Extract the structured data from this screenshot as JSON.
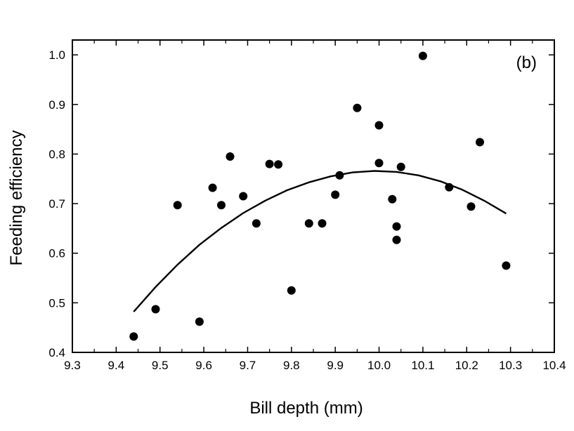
{
  "chart_data": {
    "type": "scatter",
    "title": "",
    "panel_label": "(b)",
    "xlabel": "Bill depth (mm)",
    "ylabel": "Feeding efficiency",
    "xlim": [
      9.3,
      10.4
    ],
    "ylim": [
      0.4,
      1.03
    ],
    "x_ticks": [
      "9.3",
      "9.4",
      "9.5",
      "9.6",
      "9.7",
      "9.8",
      "9.9",
      "10.0",
      "10.1",
      "10.2",
      "10.3",
      "10.4"
    ],
    "y_ticks": [
      "0.4",
      "0.5",
      "0.6",
      "0.7",
      "0.8",
      "0.9",
      "1.0"
    ],
    "grid": false,
    "points": [
      {
        "x": 9.44,
        "y": 0.432
      },
      {
        "x": 9.49,
        "y": 0.487
      },
      {
        "x": 9.54,
        "y": 0.697
      },
      {
        "x": 9.59,
        "y": 0.462
      },
      {
        "x": 9.62,
        "y": 0.732
      },
      {
        "x": 9.64,
        "y": 0.697
      },
      {
        "x": 9.66,
        "y": 0.795
      },
      {
        "x": 9.69,
        "y": 0.715
      },
      {
        "x": 9.72,
        "y": 0.66
      },
      {
        "x": 9.75,
        "y": 0.78
      },
      {
        "x": 9.77,
        "y": 0.779
      },
      {
        "x": 9.8,
        "y": 0.525
      },
      {
        "x": 9.84,
        "y": 0.66
      },
      {
        "x": 9.87,
        "y": 0.66
      },
      {
        "x": 9.9,
        "y": 0.718
      },
      {
        "x": 9.91,
        "y": 0.757
      },
      {
        "x": 9.95,
        "y": 0.893
      },
      {
        "x": 10.0,
        "y": 0.858
      },
      {
        "x": 10.0,
        "y": 0.782
      },
      {
        "x": 10.03,
        "y": 0.709
      },
      {
        "x": 10.04,
        "y": 0.654
      },
      {
        "x": 10.04,
        "y": 0.627
      },
      {
        "x": 10.05,
        "y": 0.774
      },
      {
        "x": 10.1,
        "y": 0.998
      },
      {
        "x": 10.16,
        "y": 0.733
      },
      {
        "x": 10.21,
        "y": 0.694
      },
      {
        "x": 10.23,
        "y": 0.824
      },
      {
        "x": 10.29,
        "y": 0.575
      }
    ],
    "fit_curve": {
      "x": [
        9.44,
        9.49,
        9.54,
        9.59,
        9.64,
        9.69,
        9.74,
        9.79,
        9.84,
        9.89,
        9.94,
        9.99,
        10.04,
        10.09,
        10.14,
        10.19,
        10.24,
        10.29
      ],
      "y": [
        0.482,
        0.532,
        0.577,
        0.617,
        0.651,
        0.681,
        0.706,
        0.727,
        0.743,
        0.755,
        0.763,
        0.766,
        0.764,
        0.757,
        0.745,
        0.728,
        0.706,
        0.68
      ]
    }
  }
}
